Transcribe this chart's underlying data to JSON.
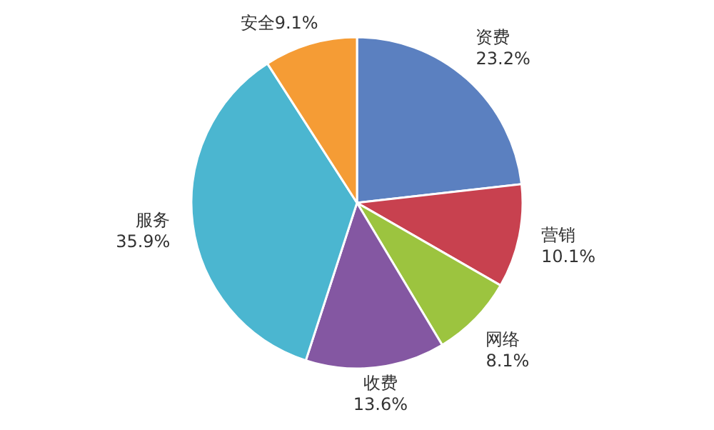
{
  "chart_data": {
    "type": "pie",
    "categories": [
      "资费",
      "营销",
      "网络",
      "收费",
      "服务",
      "安全"
    ],
    "values": [
      23.2,
      10.1,
      8.1,
      13.6,
      35.9,
      9.1
    ],
    "value_labels": [
      "23.2%",
      "10.1%",
      "8.1%",
      "13.6%",
      "35.9%",
      "9.1%"
    ],
    "colors": [
      "#5b80c0",
      "#c8414f",
      "#9cc43f",
      "#8457a2",
      "#4bb6d0",
      "#f59c35"
    ]
  }
}
